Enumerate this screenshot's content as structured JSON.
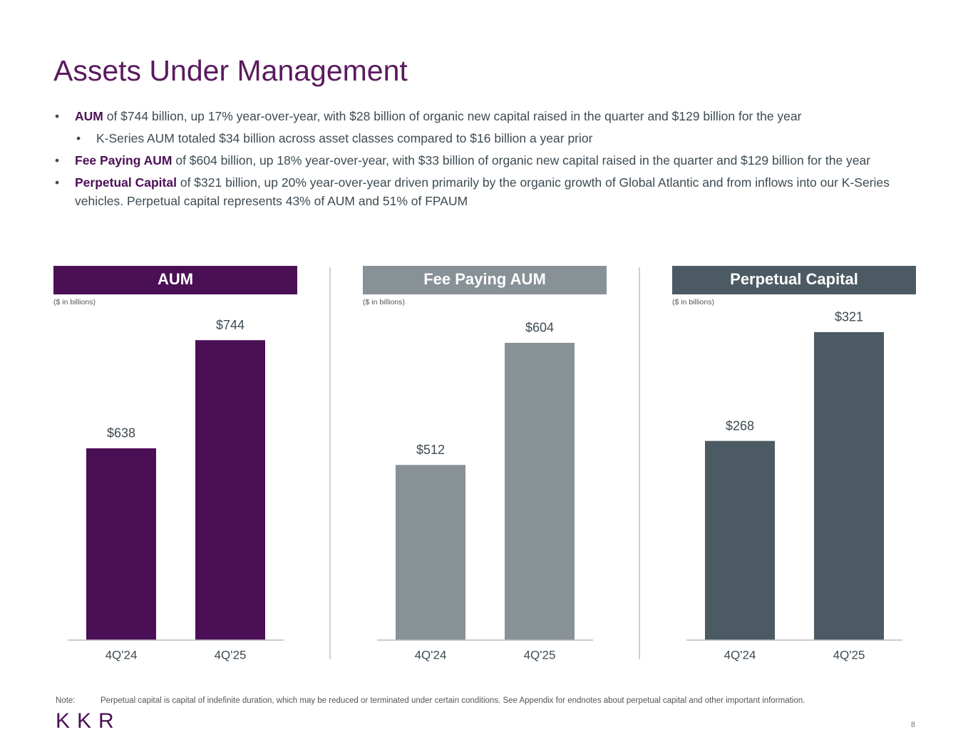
{
  "title": "Assets Under Management",
  "bullets": [
    {
      "lead": "AUM",
      "text": " of $744 billion, up 17% year-over-year, with $28 billion of organic new capital raised in the quarter and $129 billion for the year",
      "sub": [
        "K-Series AUM totaled $34 billion across asset classes compared to $16 billion a year prior"
      ]
    },
    {
      "lead": "Fee Paying AUM",
      "text": " of $604 billion, up 18% year-over-year, with $33 billion of organic new capital raised in the quarter and $129 billion for the year"
    },
    {
      "lead": "Perpetual Capital",
      "text": " of $321 billion, up 20% year-over-year driven primarily by the organic growth of Global Atlantic and from inflows into our K-Series vehicles. Perpetual capital represents 43% of AUM and 51% of FPAUM"
    }
  ],
  "chart_data": [
    {
      "type": "bar",
      "title": "AUM",
      "subtitle": "($ in billions)",
      "categories": [
        "4Q'24",
        "4Q'25"
      ],
      "values": [
        638,
        744
      ],
      "value_labels": [
        "$638",
        "$744"
      ],
      "color": "#4b0f55",
      "ylim": [
        450,
        770
      ]
    },
    {
      "type": "bar",
      "title": "Fee Paying AUM",
      "subtitle": "($ in billions)",
      "categories": [
        "4Q'24",
        "4Q'25"
      ],
      "values": [
        512,
        604
      ],
      "value_labels": [
        "$512",
        "$604"
      ],
      "color": "#889196",
      "ylim": [
        380,
        626
      ]
    },
    {
      "type": "bar",
      "title": "Perpetual Capital",
      "subtitle": "($ in billions)",
      "categories": [
        "4Q'24",
        "4Q'25"
      ],
      "values": [
        268,
        321
      ],
      "value_labels": [
        "$268",
        "$321"
      ],
      "color": "#4c5a63",
      "ylim": [
        171,
        330
      ]
    }
  ],
  "note": {
    "label": "Note:",
    "text": "Perpetual capital is capital of indefinite duration, which may be reduced or terminated under certain conditions. See Appendix for endnotes about perpetual capital and other important information."
  },
  "logo": "KKR",
  "page_number": "8"
}
